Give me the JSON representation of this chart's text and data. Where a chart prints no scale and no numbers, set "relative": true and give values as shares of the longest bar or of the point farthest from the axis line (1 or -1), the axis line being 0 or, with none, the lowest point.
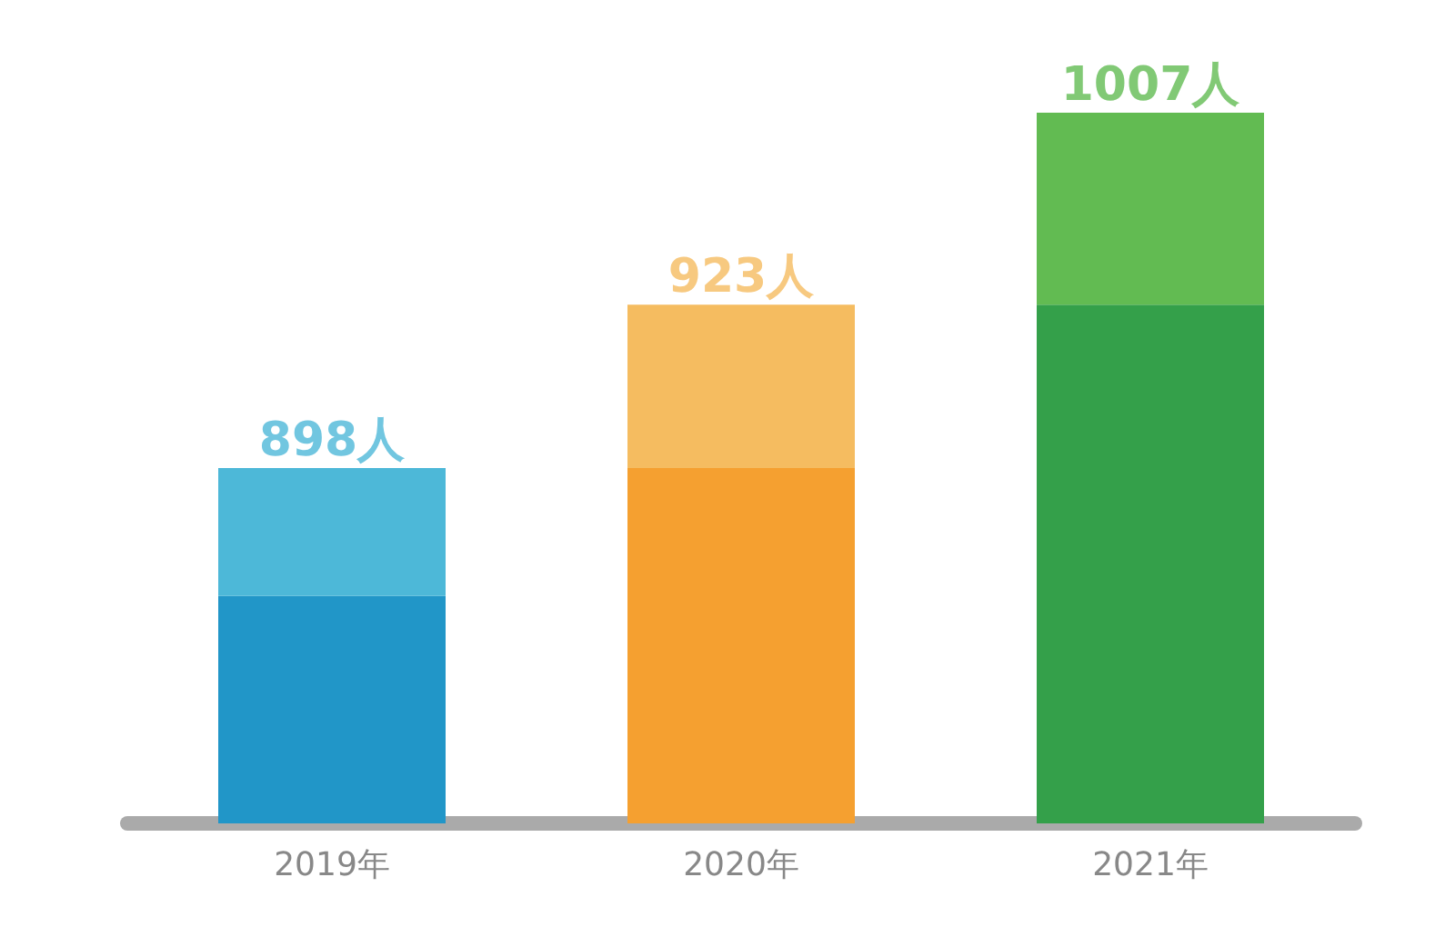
{
  "chart_data": {
    "type": "bar",
    "relative": true,
    "stacked": true,
    "categories": [
      "2019年",
      "2020年",
      "2021年"
    ],
    "series": [
      {
        "colors": [
          "#2196c8",
          "#f5a030",
          "#34a04a"
        ],
        "values": [
          0.32,
          0.5,
          0.73
        ]
      },
      {
        "colors": [
          "#4db8d8",
          "#f5bc60",
          "#62bb52"
        ],
        "values": [
          0.18,
          0.23,
          0.27
        ]
      }
    ],
    "annotations": [
      {
        "text": "898人",
        "x": "2019年",
        "y": 0.5
      },
      {
        "text": "923人",
        "x": "2020年",
        "y": 0.73
      },
      {
        "text": "1007人",
        "x": "2021年",
        "y": 1
      }
    ]
  }
}
